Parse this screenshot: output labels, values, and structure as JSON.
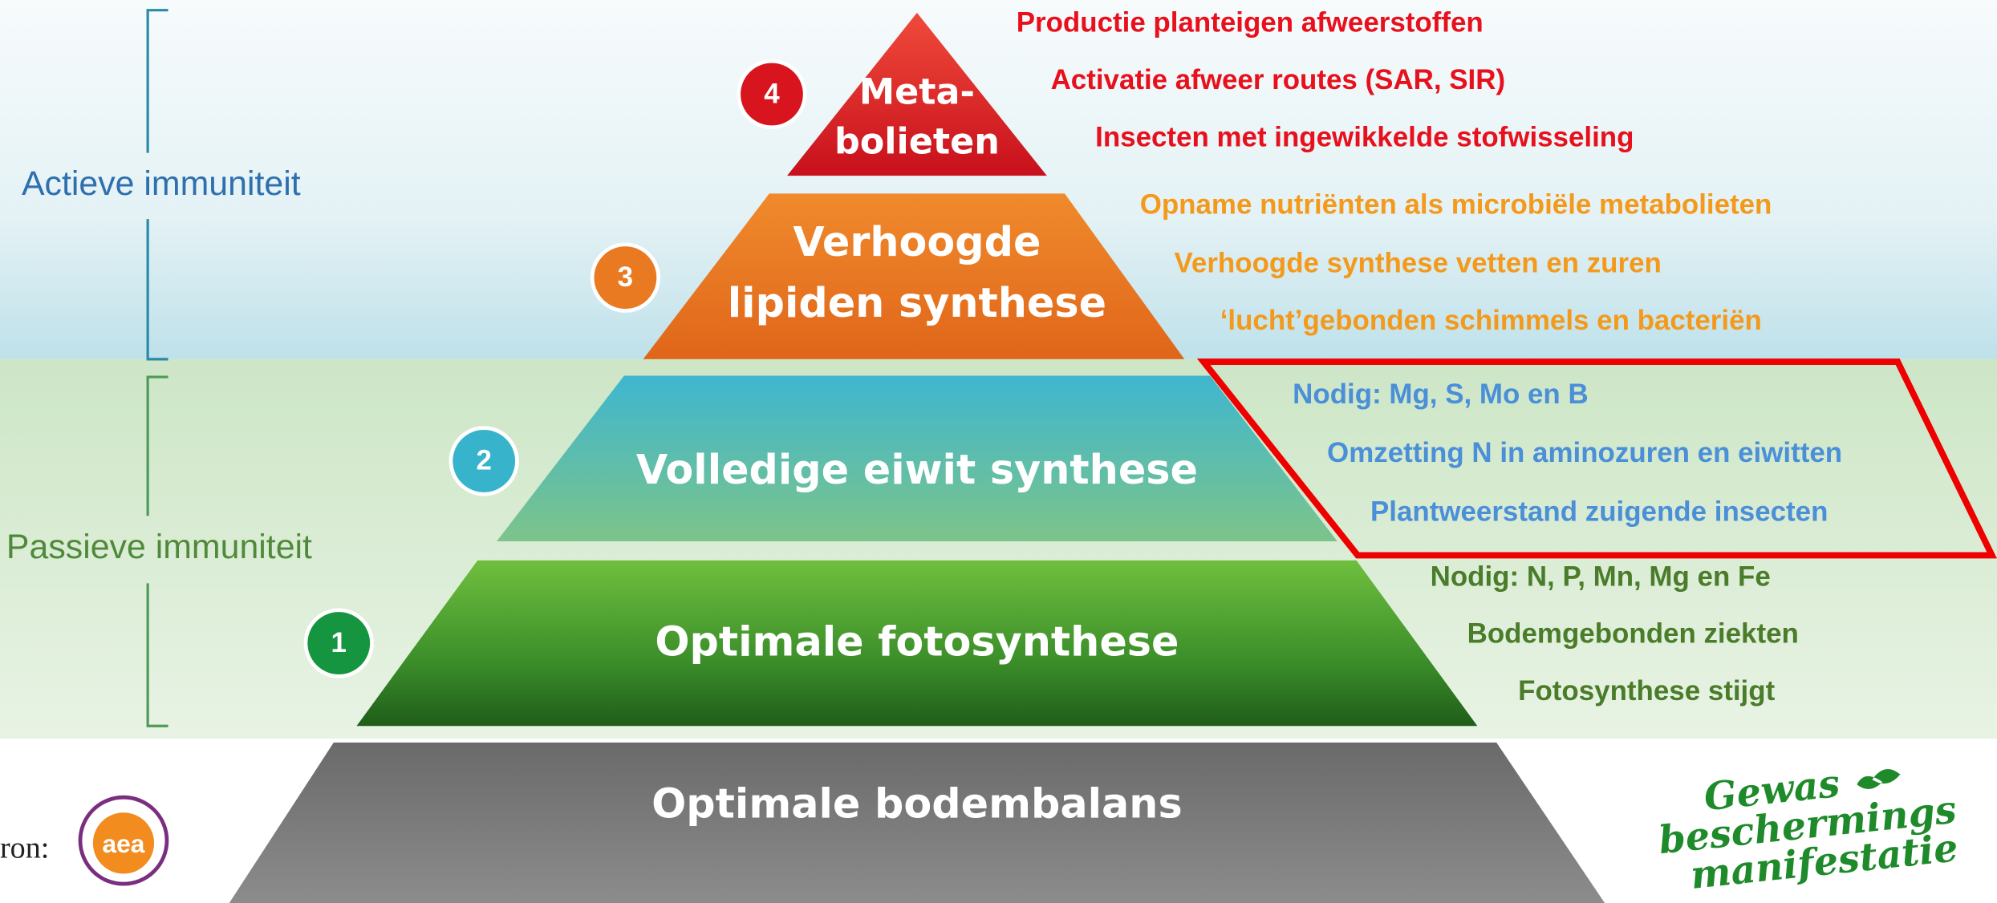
{
  "left_labels": {
    "active": "Actieve immuniteit",
    "passive": "Passieve immuniteit"
  },
  "pyramid": [
    {
      "number": "4",
      "label_lines": [
        "Meta-",
        "bolieten"
      ]
    },
    {
      "number": "3",
      "label_lines": [
        "Verhoogde",
        "lipiden synthese"
      ]
    },
    {
      "number": "2",
      "label_lines": [
        "Volledige eiwit synthese"
      ]
    },
    {
      "number": "1",
      "label_lines": [
        "Optimale fotosynthese"
      ]
    },
    {
      "label_lines": [
        "Optimale bodembalans"
      ]
    }
  ],
  "benefits": [
    [
      "Productie planteigen afweerstoffen",
      "Activatie afweer routes (SAR, SIR)",
      "Insecten met ingewikkelde stofwisseling"
    ],
    [
      "Opname nutriënten als microbiële metabolieten",
      "Verhoogde synthese vetten en zuren",
      "‘lucht’gebonden schimmels en bacteriën"
    ],
    [
      "Nodig: Mg, S, Mo en B",
      "Omzetting N in aminozuren en eiwitten",
      "Plantweerstand zuigende insecten"
    ],
    [
      "Nodig: N, P, Mn, Mg en Fe",
      "Bodemgebonden ziekten",
      "Fotosynthese stijgt"
    ]
  ],
  "source_label": "ron:",
  "source_logo": "aea",
  "brand": [
    "Gewas",
    "beschermings",
    "manifestatie"
  ]
}
